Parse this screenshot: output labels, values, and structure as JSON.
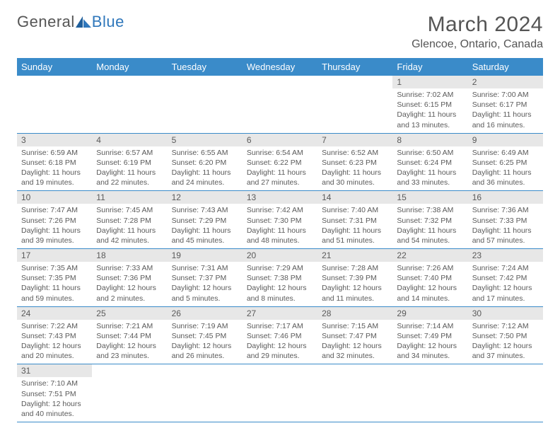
{
  "brand": {
    "word1": "General",
    "word2": "Blue"
  },
  "title": "March 2024",
  "location": "Glencoe, Ontario, Canada",
  "colors": {
    "header_bg": "#3a8bc9",
    "header_text": "#ffffff",
    "daynum_bg": "#e7e7e7",
    "cell_border": "#3a8bc9",
    "body_text": "#5a5a5a",
    "logo_blue": "#2f77bb"
  },
  "weekdays": [
    "Sunday",
    "Monday",
    "Tuesday",
    "Wednesday",
    "Thursday",
    "Friday",
    "Saturday"
  ],
  "layout": {
    "first_weekday_index": 5,
    "days_in_month": 31
  },
  "days": [
    {
      "n": 1,
      "sunrise": "7:02 AM",
      "sunset": "6:15 PM",
      "day_h": 11,
      "day_m": 13
    },
    {
      "n": 2,
      "sunrise": "7:00 AM",
      "sunset": "6:17 PM",
      "day_h": 11,
      "day_m": 16
    },
    {
      "n": 3,
      "sunrise": "6:59 AM",
      "sunset": "6:18 PM",
      "day_h": 11,
      "day_m": 19
    },
    {
      "n": 4,
      "sunrise": "6:57 AM",
      "sunset": "6:19 PM",
      "day_h": 11,
      "day_m": 22
    },
    {
      "n": 5,
      "sunrise": "6:55 AM",
      "sunset": "6:20 PM",
      "day_h": 11,
      "day_m": 24
    },
    {
      "n": 6,
      "sunrise": "6:54 AM",
      "sunset": "6:22 PM",
      "day_h": 11,
      "day_m": 27
    },
    {
      "n": 7,
      "sunrise": "6:52 AM",
      "sunset": "6:23 PM",
      "day_h": 11,
      "day_m": 30
    },
    {
      "n": 8,
      "sunrise": "6:50 AM",
      "sunset": "6:24 PM",
      "day_h": 11,
      "day_m": 33
    },
    {
      "n": 9,
      "sunrise": "6:49 AM",
      "sunset": "6:25 PM",
      "day_h": 11,
      "day_m": 36
    },
    {
      "n": 10,
      "sunrise": "7:47 AM",
      "sunset": "7:26 PM",
      "day_h": 11,
      "day_m": 39
    },
    {
      "n": 11,
      "sunrise": "7:45 AM",
      "sunset": "7:28 PM",
      "day_h": 11,
      "day_m": 42
    },
    {
      "n": 12,
      "sunrise": "7:43 AM",
      "sunset": "7:29 PM",
      "day_h": 11,
      "day_m": 45
    },
    {
      "n": 13,
      "sunrise": "7:42 AM",
      "sunset": "7:30 PM",
      "day_h": 11,
      "day_m": 48
    },
    {
      "n": 14,
      "sunrise": "7:40 AM",
      "sunset": "7:31 PM",
      "day_h": 11,
      "day_m": 51
    },
    {
      "n": 15,
      "sunrise": "7:38 AM",
      "sunset": "7:32 PM",
      "day_h": 11,
      "day_m": 54
    },
    {
      "n": 16,
      "sunrise": "7:36 AM",
      "sunset": "7:33 PM",
      "day_h": 11,
      "day_m": 57
    },
    {
      "n": 17,
      "sunrise": "7:35 AM",
      "sunset": "7:35 PM",
      "day_h": 11,
      "day_m": 59
    },
    {
      "n": 18,
      "sunrise": "7:33 AM",
      "sunset": "7:36 PM",
      "day_h": 12,
      "day_m": 2
    },
    {
      "n": 19,
      "sunrise": "7:31 AM",
      "sunset": "7:37 PM",
      "day_h": 12,
      "day_m": 5
    },
    {
      "n": 20,
      "sunrise": "7:29 AM",
      "sunset": "7:38 PM",
      "day_h": 12,
      "day_m": 8
    },
    {
      "n": 21,
      "sunrise": "7:28 AM",
      "sunset": "7:39 PM",
      "day_h": 12,
      "day_m": 11
    },
    {
      "n": 22,
      "sunrise": "7:26 AM",
      "sunset": "7:40 PM",
      "day_h": 12,
      "day_m": 14
    },
    {
      "n": 23,
      "sunrise": "7:24 AM",
      "sunset": "7:42 PM",
      "day_h": 12,
      "day_m": 17
    },
    {
      "n": 24,
      "sunrise": "7:22 AM",
      "sunset": "7:43 PM",
      "day_h": 12,
      "day_m": 20
    },
    {
      "n": 25,
      "sunrise": "7:21 AM",
      "sunset": "7:44 PM",
      "day_h": 12,
      "day_m": 23
    },
    {
      "n": 26,
      "sunrise": "7:19 AM",
      "sunset": "7:45 PM",
      "day_h": 12,
      "day_m": 26
    },
    {
      "n": 27,
      "sunrise": "7:17 AM",
      "sunset": "7:46 PM",
      "day_h": 12,
      "day_m": 29
    },
    {
      "n": 28,
      "sunrise": "7:15 AM",
      "sunset": "7:47 PM",
      "day_h": 12,
      "day_m": 32
    },
    {
      "n": 29,
      "sunrise": "7:14 AM",
      "sunset": "7:49 PM",
      "day_h": 12,
      "day_m": 34
    },
    {
      "n": 30,
      "sunrise": "7:12 AM",
      "sunset": "7:50 PM",
      "day_h": 12,
      "day_m": 37
    },
    {
      "n": 31,
      "sunrise": "7:10 AM",
      "sunset": "7:51 PM",
      "day_h": 12,
      "day_m": 40
    }
  ],
  "labels": {
    "sunrise_prefix": "Sunrise: ",
    "sunset_prefix": "Sunset: ",
    "daylight_prefix": "Daylight: ",
    "hours_word": " hours",
    "and_word": "and ",
    "minutes_word": " minutes."
  }
}
